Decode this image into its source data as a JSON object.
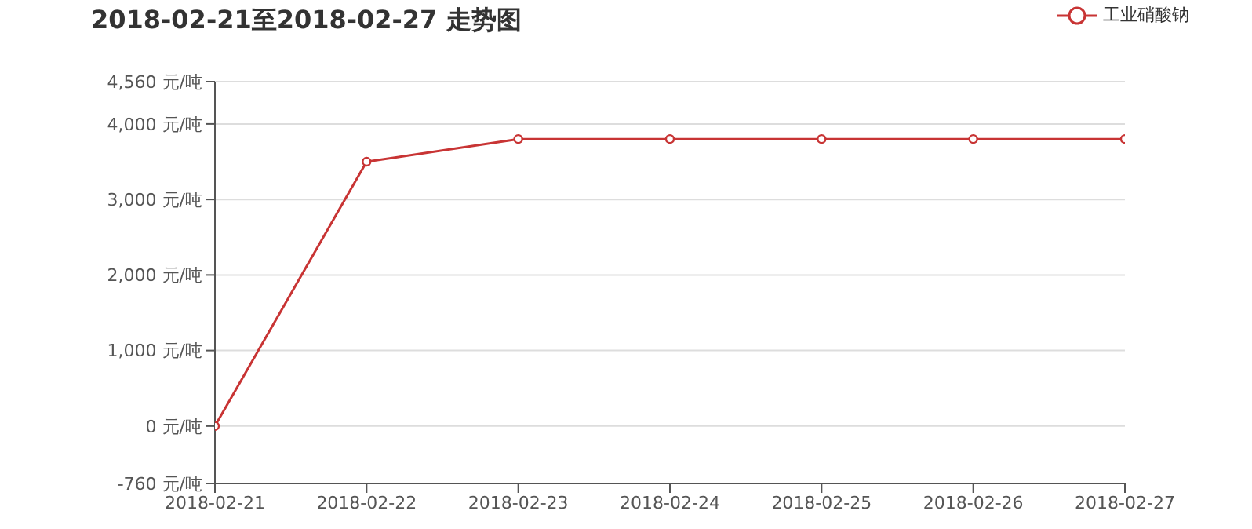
{
  "chart_data": {
    "type": "line",
    "title": "2018-02-21至2018-02-27 走势图",
    "categories": [
      "2018-02-21",
      "2018-02-22",
      "2018-02-23",
      "2018-02-24",
      "2018-02-25",
      "2018-02-26",
      "2018-02-27"
    ],
    "series": [
      {
        "name": "工业硝酸钠",
        "color": "#c83434",
        "values": [
          0,
          3500,
          3800,
          3800,
          3800,
          3800,
          3800
        ]
      }
    ],
    "ylim": [
      -760,
      4560
    ],
    "yticks": [
      {
        "value": -760,
        "label": "-760 元/吨"
      },
      {
        "value": 0,
        "label": "0 元/吨"
      },
      {
        "value": 1000,
        "label": "1,000 元/吨"
      },
      {
        "value": 2000,
        "label": "2,000 元/吨"
      },
      {
        "value": 3000,
        "label": "3,000 元/吨"
      },
      {
        "value": 4000,
        "label": "4,000 元/吨"
      },
      {
        "value": 4560,
        "label": "4,560 元/吨"
      }
    ],
    "grid": "y",
    "legend": "top right",
    "marker": "circle",
    "line_style": "solid"
  }
}
